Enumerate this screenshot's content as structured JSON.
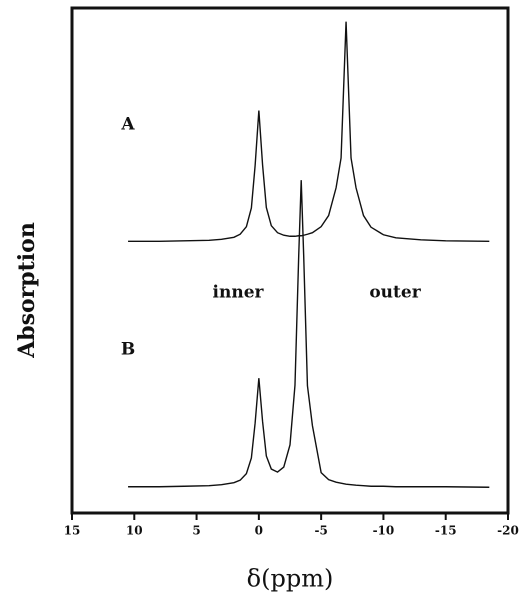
{
  "chart_data": {
    "type": "line",
    "x_label": "δ(ppm)",
    "y_label": "Absorption",
    "x": [
      10.5,
      8,
      6,
      4,
      3,
      2,
      1.5,
      1,
      0.6,
      0.3,
      0,
      -0.3,
      -0.6,
      -1,
      -1.5,
      -2,
      -2.5,
      -2.9,
      -3.2,
      -3.4,
      -3.6,
      -3.9,
      -4.3,
      -5,
      -5.6,
      -6.2,
      -6.6,
      -7,
      -7.4,
      -7.8,
      -8.4,
      -9,
      -10,
      -11,
      -13,
      -15,
      -18.5
    ],
    "series": [
      {
        "name": "A",
        "color": "#111111",
        "values": [
          53.8,
          53.8,
          53.9,
          54.0,
          54.2,
          54.6,
          55.2,
          56.7,
          60.4,
          68.8,
          79.7,
          68.9,
          60.5,
          56.9,
          55.5,
          55.0,
          54.8,
          54.8,
          54.9,
          54.9,
          55.0,
          55.2,
          55.5,
          56.7,
          58.9,
          64.4,
          70.3,
          97.3,
          70.3,
          64.4,
          58.9,
          56.6,
          55.1,
          54.5,
          54.1,
          53.9,
          53.8
        ]
      },
      {
        "name": "B",
        "color": "#111111",
        "values": [
          5.2,
          5.2,
          5.3,
          5.4,
          5.6,
          6.0,
          6.5,
          7.8,
          10.9,
          17.8,
          26.7,
          18.1,
          11.3,
          8.7,
          8.1,
          9.1,
          13.5,
          25.3,
          51.0,
          65.9,
          50.9,
          25.2,
          17.3,
          8.0,
          6.6,
          6.1,
          5.9,
          5.7,
          5.6,
          5.5,
          5.4,
          5.3,
          5.3,
          5.2,
          5.2,
          5.2,
          5.1
        ]
      }
    ],
    "annotations": [
      "inner",
      "outer"
    ],
    "xlim": [
      15,
      -20
    ],
    "xticks": [
      15,
      10,
      5,
      0,
      -5,
      -10,
      -15,
      -20
    ],
    "ylim": [
      0,
      100
    ]
  }
}
